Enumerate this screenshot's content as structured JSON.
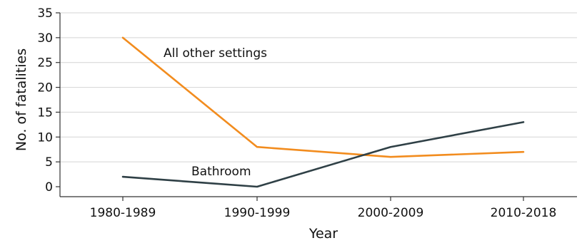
{
  "chart_data": {
    "type": "line",
    "title": "",
    "xlabel": "Year",
    "ylabel": "No. of fatalities",
    "categories": [
      "1980-1989",
      "1990-1999",
      "2000-2009",
      "2010-2018"
    ],
    "ylim": [
      0,
      35
    ],
    "yticks": [
      0,
      5,
      10,
      15,
      20,
      25,
      30,
      35
    ],
    "grid": true,
    "series": [
      {
        "name": "All other settings",
        "color": "#f28c1e",
        "values": [
          30,
          8,
          6,
          7
        ]
      },
      {
        "name": "Bathroom",
        "color": "#2f4046",
        "values": [
          2,
          0,
          8,
          13
        ]
      }
    ]
  }
}
